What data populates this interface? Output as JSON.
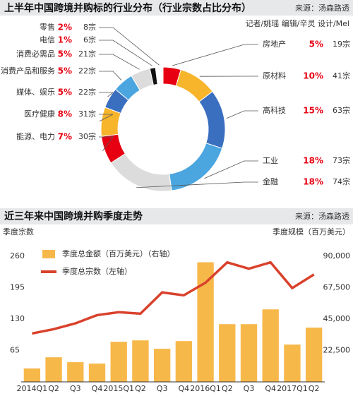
{
  "chart_data": [
    {
      "type": "donut",
      "title": "上半年中国跨境并购标的行业分布（行业宗数占比分布）",
      "source": "来源：汤森路透",
      "credits": "记者/姚瑶  编辑/辛灵  设计/Mel",
      "categories": [
        "房地产",
        "原材料",
        "高科技",
        "工业",
        "金融",
        "能源、电力",
        "医疗健康",
        "媒体、娱乐",
        "消费产品和服务",
        "消费必需品",
        "电信",
        "零售"
      ],
      "values": [
        19,
        41,
        63,
        73,
        74,
        30,
        31,
        22,
        22,
        21,
        6,
        8
      ],
      "value_labels": [
        "19宗",
        "41宗",
        "63宗",
        "73宗",
        "74宗",
        "30宗",
        "31宗",
        "22宗",
        "22宗",
        "21宗",
        "6宗",
        "8宗"
      ],
      "percents": [
        5,
        10,
        15,
        18,
        18,
        7,
        8,
        5,
        5,
        5,
        1,
        2
      ],
      "percent_labels": [
        "5%",
        "10%",
        "15%",
        "18%",
        "18%",
        "7%",
        "8%",
        "5%",
        "5%",
        "5%",
        "1%",
        "2%"
      ],
      "colors": [
        "#e60012",
        "#f7b52c",
        "#3a6fc0",
        "#4ba6e0",
        "#dcdcdc",
        "#e60012",
        "#f7b52c",
        "#3a6fc0",
        "#4ba6e0",
        "#dcdcdc",
        "#111111",
        "#ffffff"
      ]
    },
    {
      "type": "bar_line",
      "title": "近三年来中国跨境并购季度走势",
      "source": "来源：汤森路透",
      "ylabel": "季度宗数",
      "y2label": "季度规模（百万美元）",
      "categories": [
        "2014Q1",
        "Q2",
        "Q3",
        "Q4",
        "2015Q1",
        "Q2",
        "Q3",
        "Q4",
        "2016Q1",
        "Q2",
        "Q3",
        "Q4",
        "2017Q1",
        "Q2"
      ],
      "series": [
        {
          "name": "季度总金额（百万美元）（右轴）",
          "color": "#f7b84a",
          "axis": "y2",
          "kind": "bar",
          "values": [
            9600,
            17600,
            14100,
            13100,
            28700,
            29700,
            23700,
            29200,
            85600,
            41300,
            41300,
            51900,
            26700,
            38800
          ]
        },
        {
          "name": "季度总宗数（左轴）",
          "color": "#d9412b",
          "kind": "line",
          "values": [
            100,
            109,
            121,
            138,
            144,
            141,
            185,
            179,
            205,
            247,
            234,
            247,
            194,
            222
          ]
        }
      ],
      "ylim": [
        0,
        286
      ],
      "yticks": [
        65,
        130,
        195,
        260
      ],
      "y2lim": [
        0,
        99000
      ],
      "y2ticks": [
        {
          "value": 22500,
          "label": "22,500"
        },
        {
          "value": 45000,
          "label": "45,000"
        },
        {
          "value": 67500,
          "label": "67,500"
        },
        {
          "value": 90000,
          "label": "90,000"
        }
      ]
    }
  ]
}
